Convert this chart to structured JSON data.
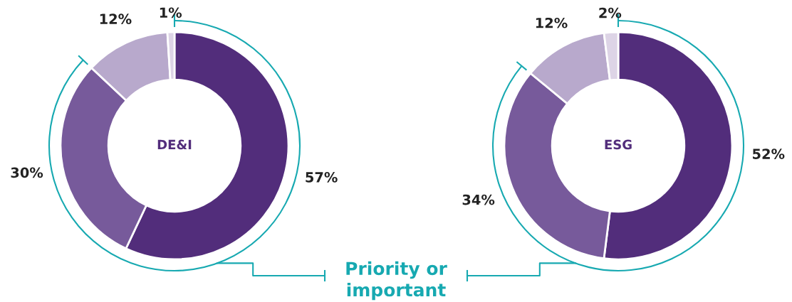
{
  "chart_data": [
    {
      "type": "donut",
      "title": "DE&I",
      "categories": [
        null,
        null,
        null,
        null
      ],
      "values": [
        57,
        30,
        12,
        1
      ],
      "colors": [
        "#522d7b",
        "#775a9b",
        "#b8a9cc",
        "#ddd4e6"
      ],
      "data_labels": true,
      "value_labels": [
        "57%",
        "30%",
        "12%",
        "1%"
      ],
      "annotations": [
        "Priority or\nimportant"
      ]
    },
    {
      "type": "donut",
      "title": "ESG",
      "categories": [
        null,
        null,
        null,
        null
      ],
      "values": [
        52,
        34,
        12,
        2
      ],
      "colors": [
        "#522d7b",
        "#775a9b",
        "#b8a9cc",
        "#ddd4e6"
      ],
      "data_labels": true,
      "value_labels": [
        "52%",
        "34%",
        "12%",
        "2%"
      ]
    }
  ]
}
